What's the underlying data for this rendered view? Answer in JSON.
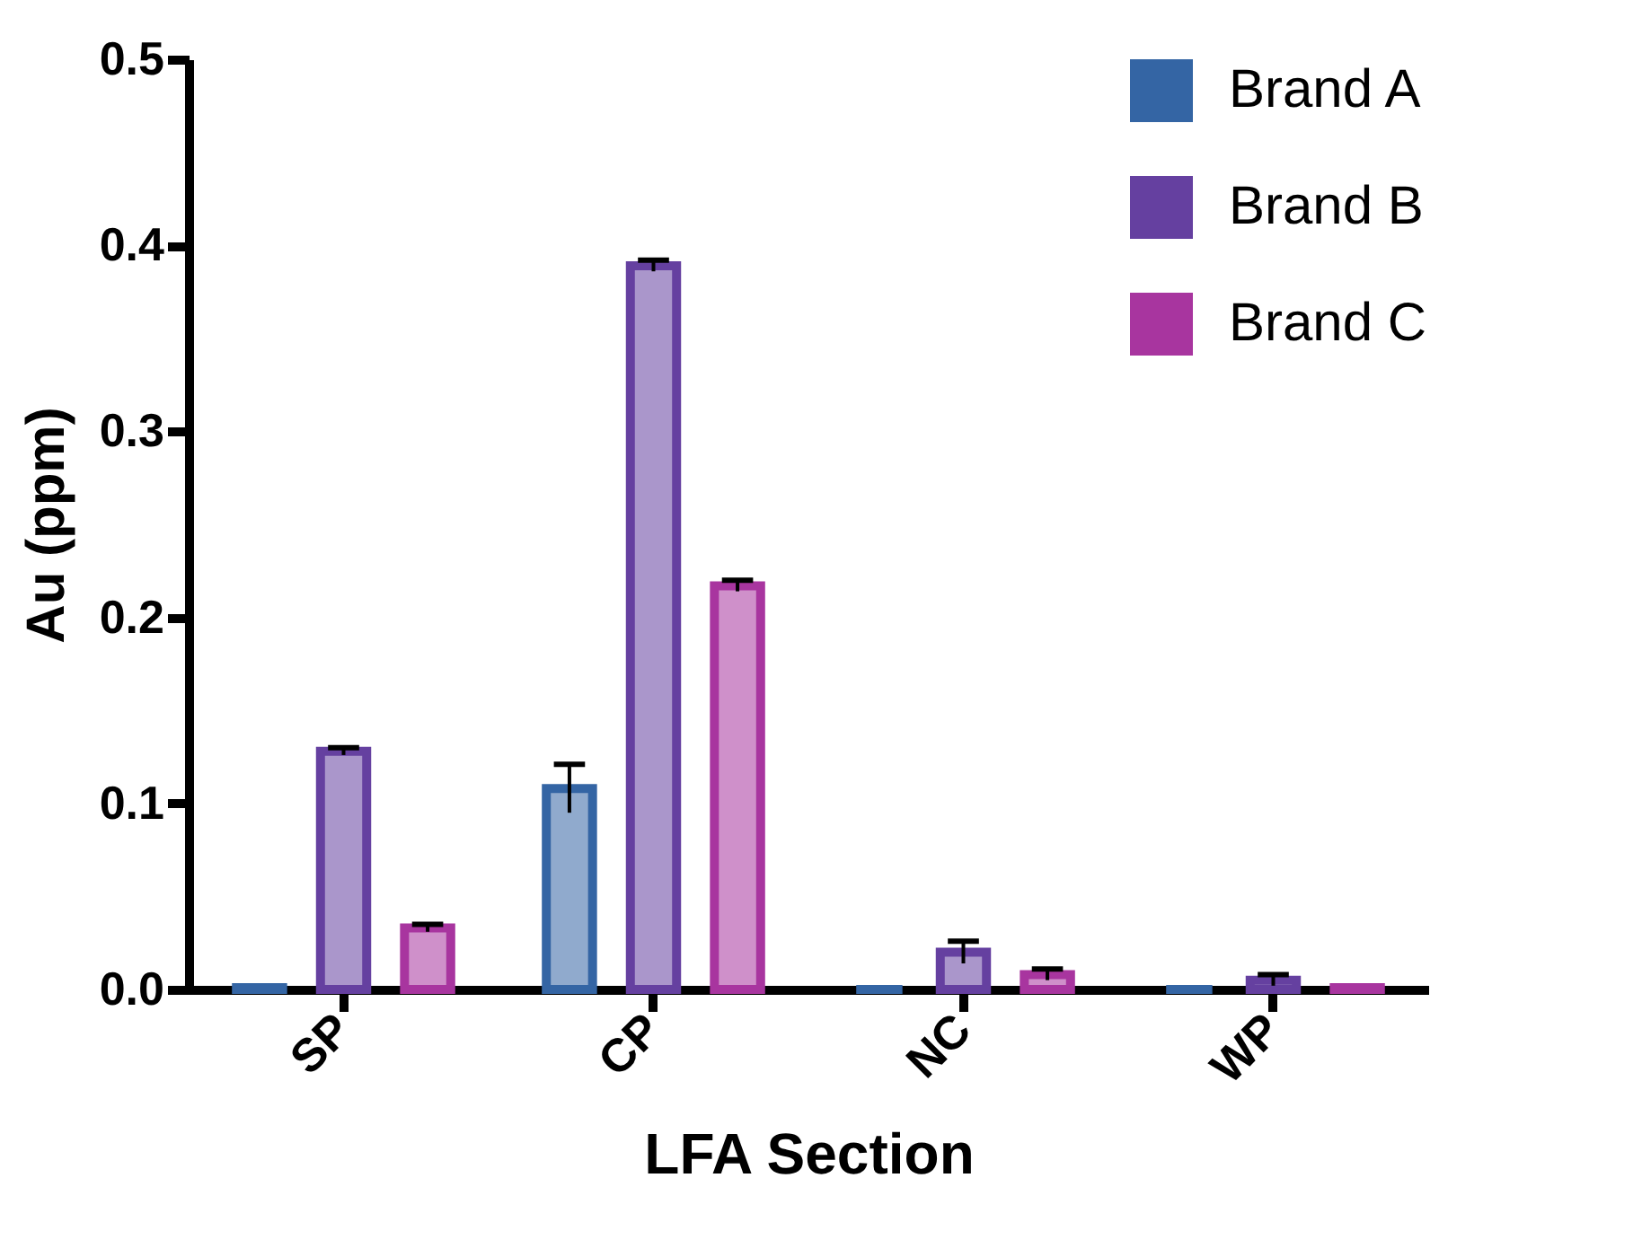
{
  "chart_data": {
    "type": "bar",
    "xlabel": "LFA Section",
    "ylabel": "Au (ppm)",
    "categories": [
      "SP",
      "CP",
      "NC",
      "WP"
    ],
    "series": [
      {
        "name": "Brand A",
        "color": "#3465a4",
        "values": [
          0.001,
          0.108,
          0,
          0
        ],
        "errors": [
          null,
          0.013,
          null,
          null
        ]
      },
      {
        "name": "Brand B",
        "color": "#6540a0",
        "values": [
          0.128,
          0.389,
          0.02,
          0.005
        ],
        "errors": [
          0.002,
          0.003,
          0.006,
          0.003
        ]
      },
      {
        "name": "Brand C",
        "color": "#a8359f",
        "values": [
          0.033,
          0.217,
          0.008,
          0.001
        ],
        "errors": [
          0.002,
          0.003,
          0.003,
          null
        ]
      }
    ],
    "ylim": [
      0,
      0.5
    ],
    "yticks": [
      {
        "value": 0,
        "label": "0.0"
      },
      0.1,
      0.2,
      0.3,
      0.4,
      0.5
    ],
    "legend": "top right",
    "grid": false
  }
}
